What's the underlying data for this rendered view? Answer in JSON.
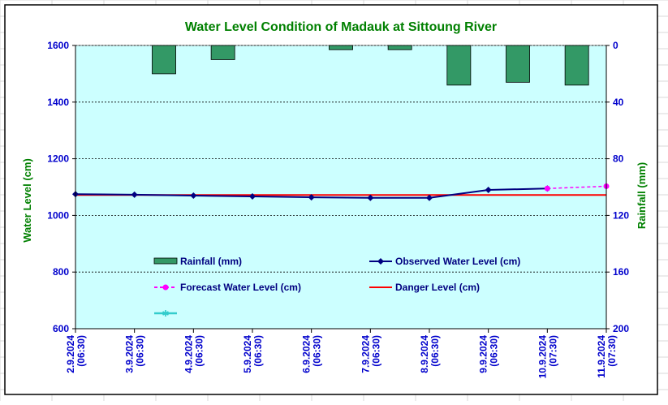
{
  "chart_data": {
    "type": "bar+line",
    "title": "Water Level Condition of Madauk at Sittoung River",
    "ylabel": "Water Level (cm)",
    "y2label": "Rainfall (mm)",
    "ylim": [
      600,
      1600
    ],
    "y2lim": [
      0,
      200
    ],
    "y2_inverted": true,
    "yticks": [
      "1600",
      "1400",
      "1200",
      "1000",
      "800",
      "600"
    ],
    "y2ticks": [
      "0",
      "40",
      "80",
      "120",
      "160",
      "200"
    ],
    "categories": [
      [
        "2.9.2024",
        "(06:30)"
      ],
      [
        "3.9.2024",
        "(06:30)"
      ],
      [
        "4.9.2024",
        "(06:30)"
      ],
      [
        "5.9.2024",
        "(06:30)"
      ],
      [
        "6.9.2024",
        "(06:30)"
      ],
      [
        "7.9.2024",
        "(06:30)"
      ],
      [
        "8.9.2024",
        "(06:30)"
      ],
      [
        "9.9.2024",
        "(06:30)"
      ],
      [
        "10.9.2024",
        "(07:30)"
      ],
      [
        "11.9.2024",
        "(07:30)"
      ]
    ],
    "rainfall": {
      "name": "Rainfall (mm)",
      "color": "#339966",
      "bars": [
        {
          "between": [
            1,
            2
          ],
          "value": 20
        },
        {
          "between": [
            2,
            3
          ],
          "value": 10
        },
        {
          "between": [
            4,
            5
          ],
          "value": 3
        },
        {
          "between": [
            5,
            6
          ],
          "value": 3
        },
        {
          "between": [
            6,
            7
          ],
          "value": 28
        },
        {
          "between": [
            7,
            8
          ],
          "value": 26
        },
        {
          "between": [
            8,
            9
          ],
          "value": 28
        }
      ]
    },
    "observed": {
      "name": "Observed Water Level (cm)",
      "color": "#000080",
      "x": [
        0,
        1,
        2,
        3,
        4,
        5,
        6,
        7,
        8
      ],
      "values": [
        1075,
        1073,
        1070,
        1067,
        1064,
        1062,
        1062,
        1090,
        1095
      ]
    },
    "forecast": {
      "name": "Forecast Water Level (cm)",
      "color": "#ff00ff",
      "x": [
        8,
        9
      ],
      "values": [
        1095,
        1103
      ]
    },
    "danger": {
      "name": "Danger Level (cm)",
      "color": "#ff0000",
      "value": 1072
    },
    "extra_legend_color": "#33cccc",
    "plot_bg": "#ccffff",
    "grid": true
  }
}
